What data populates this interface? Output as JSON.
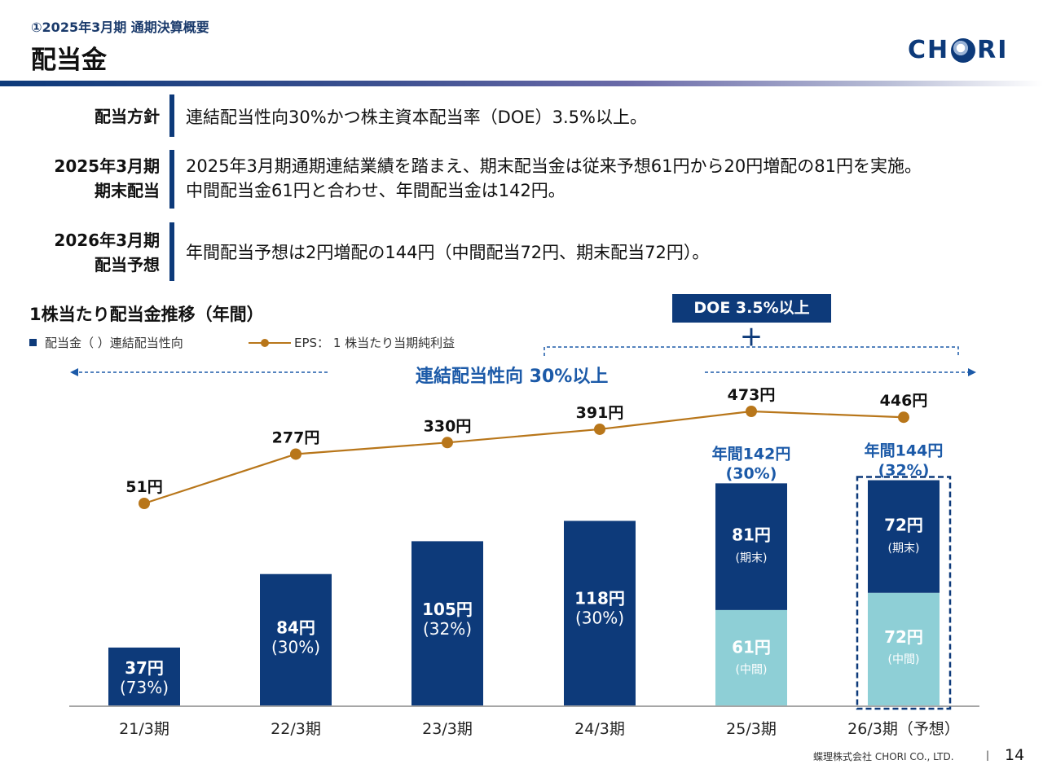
{
  "header": {
    "subtitle": "①2025年3月期 通期決算概要",
    "title": "配当金",
    "logo_text": "CHORI"
  },
  "policies": [
    {
      "label_lines": [
        "配当方針"
      ],
      "text_lines": [
        "連結配当性向30%かつ株主資本配当率（DOE）3.5%以上。"
      ]
    },
    {
      "label_lines": [
        "2025年3月期",
        "期末配当"
      ],
      "text_lines": [
        "2025年3月期通期連結業績を踏まえ、期末配当金は従来予想61円から20円増配の81円を実施。",
        "中間配当金61円と合わせ、年間配当金は142円。"
      ]
    },
    {
      "label_lines": [
        "2026年3月期",
        "配当予想"
      ],
      "text_lines": [
        "年間配当予想は2円増配の144円（中間配当72円、期末配当72円）。"
      ]
    }
  ],
  "chart_section": {
    "title": "1株当たり配当金推移（年間）",
    "legend_bar": "配当金（ ）連結配当性向",
    "legend_line": "EPS： 1 株当たり当期純利益",
    "doe_label": "DOE 3.5%以上",
    "plus": "＋",
    "payout_label": "連結配当性向 30%以上"
  },
  "chart_data": {
    "type": "bar",
    "categories": [
      "21/3期",
      "22/3期",
      "23/3期",
      "24/3期",
      "25/3期",
      "26/3期（予想）"
    ],
    "dividend_total": [
      37,
      84,
      105,
      118,
      142,
      144
    ],
    "dividend_labels": [
      "37円",
      "84円",
      "105円",
      "118円",
      "",
      ""
    ],
    "payout_labels": [
      "(73%)",
      "(30%)",
      "(32%)",
      "(30%)",
      "",
      ""
    ],
    "stacked": [
      null,
      null,
      null,
      null,
      {
        "interim": 61,
        "final": 81,
        "interim_label": "61円",
        "final_label": "81円",
        "interim_note": "(中間)",
        "final_note": "(期末)",
        "annual_label": "年間142円",
        "annual_payout": "(30%)"
      },
      {
        "interim": 72,
        "final": 72,
        "interim_label": "72円",
        "final_label": "72円",
        "interim_note": "(中間)",
        "final_note": "(期末)",
        "annual_label": "年間144円",
        "annual_payout": "(32%)"
      }
    ],
    "eps": [
      51,
      277,
      330,
      391,
      473,
      446
    ],
    "eps_labels": [
      "51円",
      "277円",
      "330円",
      "391円",
      "473円",
      "446円"
    ],
    "forecast_index": 5,
    "colors": {
      "bar": "#0d3a7a",
      "interim": "#8ecfd6",
      "eps_line": "#b8761a",
      "accent_text": "#1c5aa8"
    }
  },
  "footer": {
    "company": "蝶理株式会社 CHORI CO., LTD.",
    "separator": "|",
    "page": "14"
  }
}
